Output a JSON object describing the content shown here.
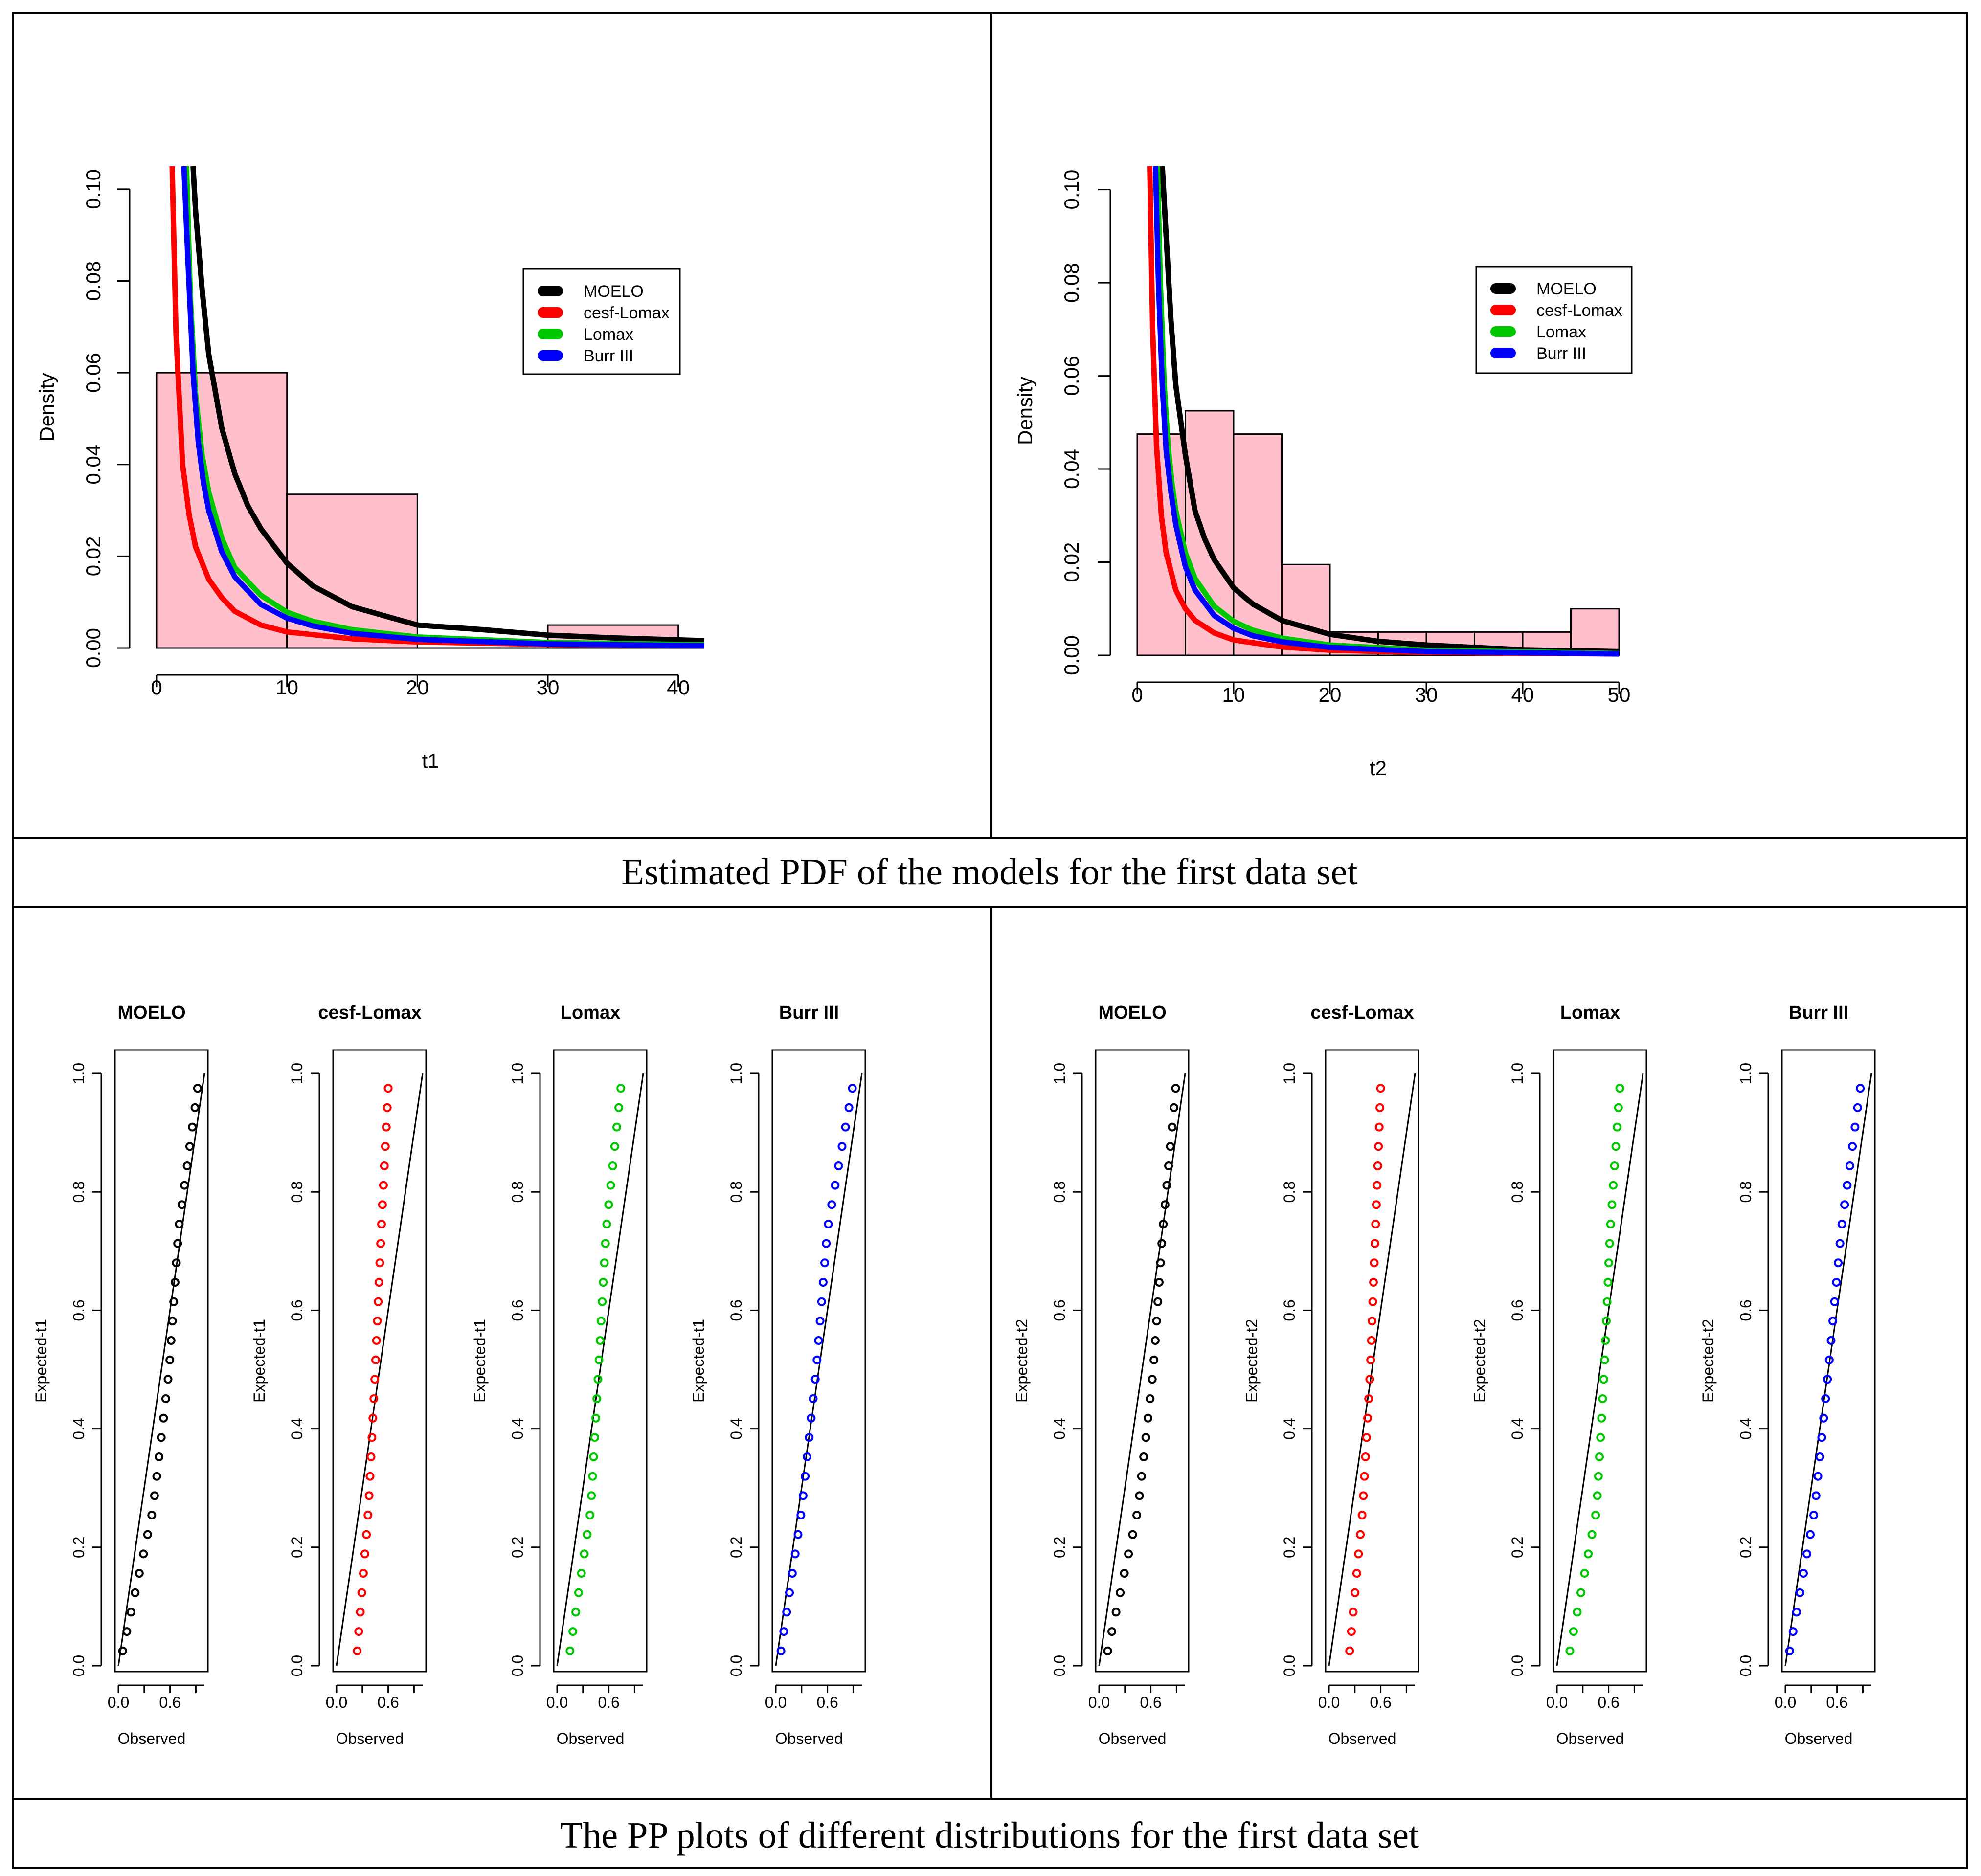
{
  "captions": {
    "pdf": "Estimated PDF of the models for the first data set",
    "pp": "The PP plots of different distributions for the first data set"
  },
  "colors": {
    "hist_fill": "#ffc0cb",
    "MOELO": "#000000",
    "cesf-Lomax": "#ff0000",
    "Lomax": "#00c800",
    "Burr III": "#0000ff"
  },
  "legend": [
    "MOELO",
    "cesf-Lomax",
    "Lomax",
    "Burr III"
  ],
  "chart_data": [
    {
      "id": "pdf_t1",
      "type": "bar",
      "title": "",
      "xlabel": "t1",
      "ylabel": "Density",
      "xlim": [
        0,
        42
      ],
      "ylim": [
        0,
        0.105
      ],
      "xticks": [
        0,
        10,
        20,
        30,
        40
      ],
      "yticks": [
        0.0,
        0.02,
        0.04,
        0.06,
        0.08,
        0.1
      ],
      "histogram": {
        "breaks": [
          0,
          10,
          20,
          30,
          40
        ],
        "density": [
          0.06,
          0.0335,
          0.0,
          0.005
        ]
      },
      "curves": [
        {
          "name": "MOELO",
          "x": [
            2.8,
            3,
            3.5,
            4,
            5,
            6,
            7,
            8,
            10,
            12,
            15,
            20,
            25,
            30,
            35,
            42
          ],
          "y": [
            0.105,
            0.095,
            0.078,
            0.064,
            0.048,
            0.038,
            0.031,
            0.026,
            0.0185,
            0.0135,
            0.009,
            0.005,
            0.004,
            0.0028,
            0.0022,
            0.0016
          ]
        },
        {
          "name": "cesf-Lomax",
          "x": [
            1.2,
            1.5,
            2,
            2.5,
            3,
            4,
            5,
            6,
            8,
            10,
            15,
            20,
            30,
            42
          ],
          "y": [
            0.105,
            0.068,
            0.04,
            0.029,
            0.022,
            0.015,
            0.011,
            0.008,
            0.005,
            0.0035,
            0.002,
            0.0013,
            0.0008,
            0.0005
          ]
        },
        {
          "name": "Lomax",
          "x": [
            2.3,
            2.6,
            3,
            3.5,
            4,
            5,
            6,
            8,
            10,
            12,
            15,
            20,
            30,
            42
          ],
          "y": [
            0.105,
            0.076,
            0.055,
            0.042,
            0.034,
            0.024,
            0.0175,
            0.0115,
            0.0078,
            0.0058,
            0.004,
            0.0024,
            0.0012,
            0.0007
          ]
        },
        {
          "name": "Burr III",
          "x": [
            2.1,
            2.4,
            2.8,
            3.2,
            3.6,
            4,
            5,
            6,
            8,
            10,
            12,
            15,
            20,
            30,
            42
          ],
          "y": [
            0.105,
            0.085,
            0.06,
            0.045,
            0.036,
            0.03,
            0.021,
            0.0155,
            0.0095,
            0.0065,
            0.0048,
            0.0032,
            0.0019,
            0.0009,
            0.0005
          ]
        }
      ],
      "legend_entries": [
        "MOELO",
        "cesf-Lomax",
        "Lomax",
        "Burr III"
      ]
    },
    {
      "id": "pdf_t2",
      "type": "bar",
      "title": "",
      "xlabel": "t2",
      "ylabel": "Density",
      "xlim": [
        0,
        50
      ],
      "ylim": [
        0,
        0.105
      ],
      "xticks": [
        0,
        10,
        20,
        30,
        40,
        50
      ],
      "yticks": [
        0.0,
        0.02,
        0.04,
        0.06,
        0.08,
        0.1
      ],
      "histogram": {
        "breaks": [
          0,
          5,
          10,
          15,
          20,
          25,
          30,
          35,
          40,
          45,
          50
        ],
        "density": [
          0.0475,
          0.0525,
          0.0475,
          0.0195,
          0.005,
          0.005,
          0.005,
          0.005,
          0.005,
          0.01
        ]
      },
      "curves": [
        {
          "name": "MOELO",
          "x": [
            2.6,
            3,
            3.5,
            4,
            5,
            6,
            7,
            8,
            10,
            12,
            15,
            20,
            25,
            30,
            40,
            50
          ],
          "y": [
            0.105,
            0.09,
            0.072,
            0.058,
            0.043,
            0.031,
            0.025,
            0.0205,
            0.0145,
            0.011,
            0.0075,
            0.0045,
            0.003,
            0.0022,
            0.0012,
            0.0008
          ]
        },
        {
          "name": "cesf-Lomax",
          "x": [
            1.3,
            1.6,
            2,
            2.5,
            3,
            4,
            5,
            6,
            8,
            10,
            15,
            20,
            30,
            50
          ],
          "y": [
            0.105,
            0.07,
            0.045,
            0.03,
            0.022,
            0.014,
            0.01,
            0.0075,
            0.0048,
            0.0033,
            0.0018,
            0.0011,
            0.0006,
            0.0003
          ]
        },
        {
          "name": "Lomax",
          "x": [
            2.1,
            2.4,
            2.8,
            3.2,
            3.6,
            4,
            5,
            6,
            8,
            10,
            12,
            15,
            20,
            30,
            50
          ],
          "y": [
            0.105,
            0.08,
            0.058,
            0.045,
            0.037,
            0.031,
            0.022,
            0.0165,
            0.0105,
            0.0073,
            0.0054,
            0.0037,
            0.0022,
            0.0011,
            0.0004
          ]
        },
        {
          "name": "Burr III",
          "x": [
            1.9,
            2.2,
            2.6,
            3,
            3.5,
            4,
            5,
            6,
            8,
            10,
            12,
            15,
            20,
            30,
            50
          ],
          "y": [
            0.105,
            0.08,
            0.058,
            0.044,
            0.035,
            0.028,
            0.019,
            0.014,
            0.0085,
            0.0058,
            0.0042,
            0.0029,
            0.0017,
            0.0008,
            0.0003
          ]
        }
      ],
      "legend_entries": [
        "MOELO",
        "cesf-Lomax",
        "Lomax",
        "Burr III"
      ]
    },
    {
      "id": "pp_t1_moelo",
      "type": "scatter",
      "title": "MOELO",
      "xlabel": "Observed",
      "ylabel": "Expected-t1",
      "xlim": [
        0,
        1
      ],
      "ylim": [
        0,
        1
      ],
      "xticks": [
        "0.0",
        "0.6"
      ],
      "yticks": [
        "0.0",
        "0.2",
        "0.4",
        "0.6",
        "0.8",
        "1.0"
      ],
      "obs_range": [
        0.05,
        0.92
      ],
      "knots": [
        [
          0,
          0.05
        ],
        [
          0.25,
          0.4
        ],
        [
          0.5,
          0.59
        ],
        [
          0.75,
          0.7
        ],
        [
          1,
          0.92
        ]
      ]
    },
    {
      "id": "pp_t1_cesf",
      "type": "scatter",
      "title": "cesf-Lomax",
      "xlabel": "Observed",
      "ylabel": "Expected-t1",
      "xlim": [
        0,
        1
      ],
      "ylim": [
        0,
        1
      ],
      "xticks": [
        "0.0",
        "0.6"
      ],
      "yticks": [
        "0.0",
        "0.2",
        "0.4",
        "0.6",
        "0.8",
        "1.0"
      ],
      "obs_range": [
        0.24,
        0.6
      ],
      "knots": [
        [
          0,
          0.24
        ],
        [
          0.25,
          0.37
        ],
        [
          0.5,
          0.45
        ],
        [
          0.75,
          0.52
        ],
        [
          1,
          0.6
        ]
      ]
    },
    {
      "id": "pp_t1_lomax",
      "type": "scatter",
      "title": "Lomax",
      "xlabel": "Observed",
      "ylabel": "Expected-t1",
      "xlim": [
        0,
        1
      ],
      "ylim": [
        0,
        1
      ],
      "xticks": [
        "0.0",
        "0.6"
      ],
      "yticks": [
        "0.0",
        "0.2",
        "0.4",
        "0.6",
        "0.8",
        "1.0"
      ],
      "obs_range": [
        0.15,
        0.74
      ],
      "knots": [
        [
          0,
          0.15
        ],
        [
          0.25,
          0.39
        ],
        [
          0.5,
          0.48
        ],
        [
          0.75,
          0.57
        ],
        [
          1,
          0.74
        ]
      ]
    },
    {
      "id": "pp_t1_burr",
      "type": "scatter",
      "title": "Burr III",
      "xlabel": "Observed",
      "ylabel": "Expected-t1",
      "xlim": [
        0,
        1
      ],
      "ylim": [
        0,
        1
      ],
      "xticks": [
        "0.0",
        "0.6"
      ],
      "yticks": [
        "0.0",
        "0.2",
        "0.4",
        "0.6",
        "0.8",
        "1.0"
      ],
      "obs_range": [
        0.06,
        0.89
      ],
      "knots": [
        [
          0,
          0.06
        ],
        [
          0.25,
          0.3
        ],
        [
          0.5,
          0.47
        ],
        [
          0.75,
          0.6
        ],
        [
          1,
          0.89
        ]
      ]
    },
    {
      "id": "pp_t2_moelo",
      "type": "scatter",
      "title": "MOELO",
      "xlabel": "Observed",
      "ylabel": "Expected-t2",
      "xlim": [
        0,
        1
      ],
      "ylim": [
        0,
        1
      ],
      "xticks": [
        "0.0",
        "0.6"
      ],
      "yticks": [
        "0.0",
        "0.2",
        "0.4",
        "0.6",
        "0.8",
        "1.0"
      ],
      "obs_range": [
        0.1,
        0.89
      ],
      "knots": [
        [
          0,
          0.1
        ],
        [
          0.25,
          0.45
        ],
        [
          0.5,
          0.63
        ],
        [
          0.75,
          0.74
        ],
        [
          1,
          0.89
        ]
      ]
    },
    {
      "id": "pp_t2_cesf",
      "type": "scatter",
      "title": "cesf-Lomax",
      "xlabel": "Observed",
      "ylabel": "Expected-t2",
      "xlim": [
        0,
        1
      ],
      "ylim": [
        0,
        1
      ],
      "xticks": [
        "0.0",
        "0.6"
      ],
      "yticks": [
        "0.0",
        "0.2",
        "0.4",
        "0.6",
        "0.8",
        "1.0"
      ],
      "obs_range": [
        0.24,
        0.6
      ],
      "knots": [
        [
          0,
          0.24
        ],
        [
          0.25,
          0.39
        ],
        [
          0.5,
          0.48
        ],
        [
          0.75,
          0.54
        ],
        [
          1,
          0.6
        ]
      ]
    },
    {
      "id": "pp_t2_lomax",
      "type": "scatter",
      "title": "Lomax",
      "xlabel": "Observed",
      "ylabel": "Expected-t2",
      "xlim": [
        0,
        1
      ],
      "ylim": [
        0,
        1
      ],
      "xticks": [
        "0.0",
        "0.6"
      ],
      "yticks": [
        "0.0",
        "0.2",
        "0.4",
        "0.6",
        "0.8",
        "1.0"
      ],
      "obs_range": [
        0.15,
        0.73
      ],
      "knots": [
        [
          0,
          0.15
        ],
        [
          0.25,
          0.46
        ],
        [
          0.5,
          0.55
        ],
        [
          0.75,
          0.62
        ],
        [
          1,
          0.73
        ]
      ]
    },
    {
      "id": "pp_t2_burr",
      "type": "scatter",
      "title": "Burr III",
      "xlabel": "Observed",
      "ylabel": "Expected-t2",
      "xlim": [
        0,
        1
      ],
      "ylim": [
        0,
        1
      ],
      "xticks": [
        "0.0",
        "0.6"
      ],
      "yticks": [
        "0.0",
        "0.2",
        "0.4",
        "0.6",
        "0.8",
        "1.0"
      ],
      "obs_range": [
        0.05,
        0.87
      ],
      "knots": [
        [
          0,
          0.05
        ],
        [
          0.25,
          0.34
        ],
        [
          0.5,
          0.5
        ],
        [
          0.75,
          0.65
        ],
        [
          1,
          0.87
        ]
      ]
    }
  ]
}
